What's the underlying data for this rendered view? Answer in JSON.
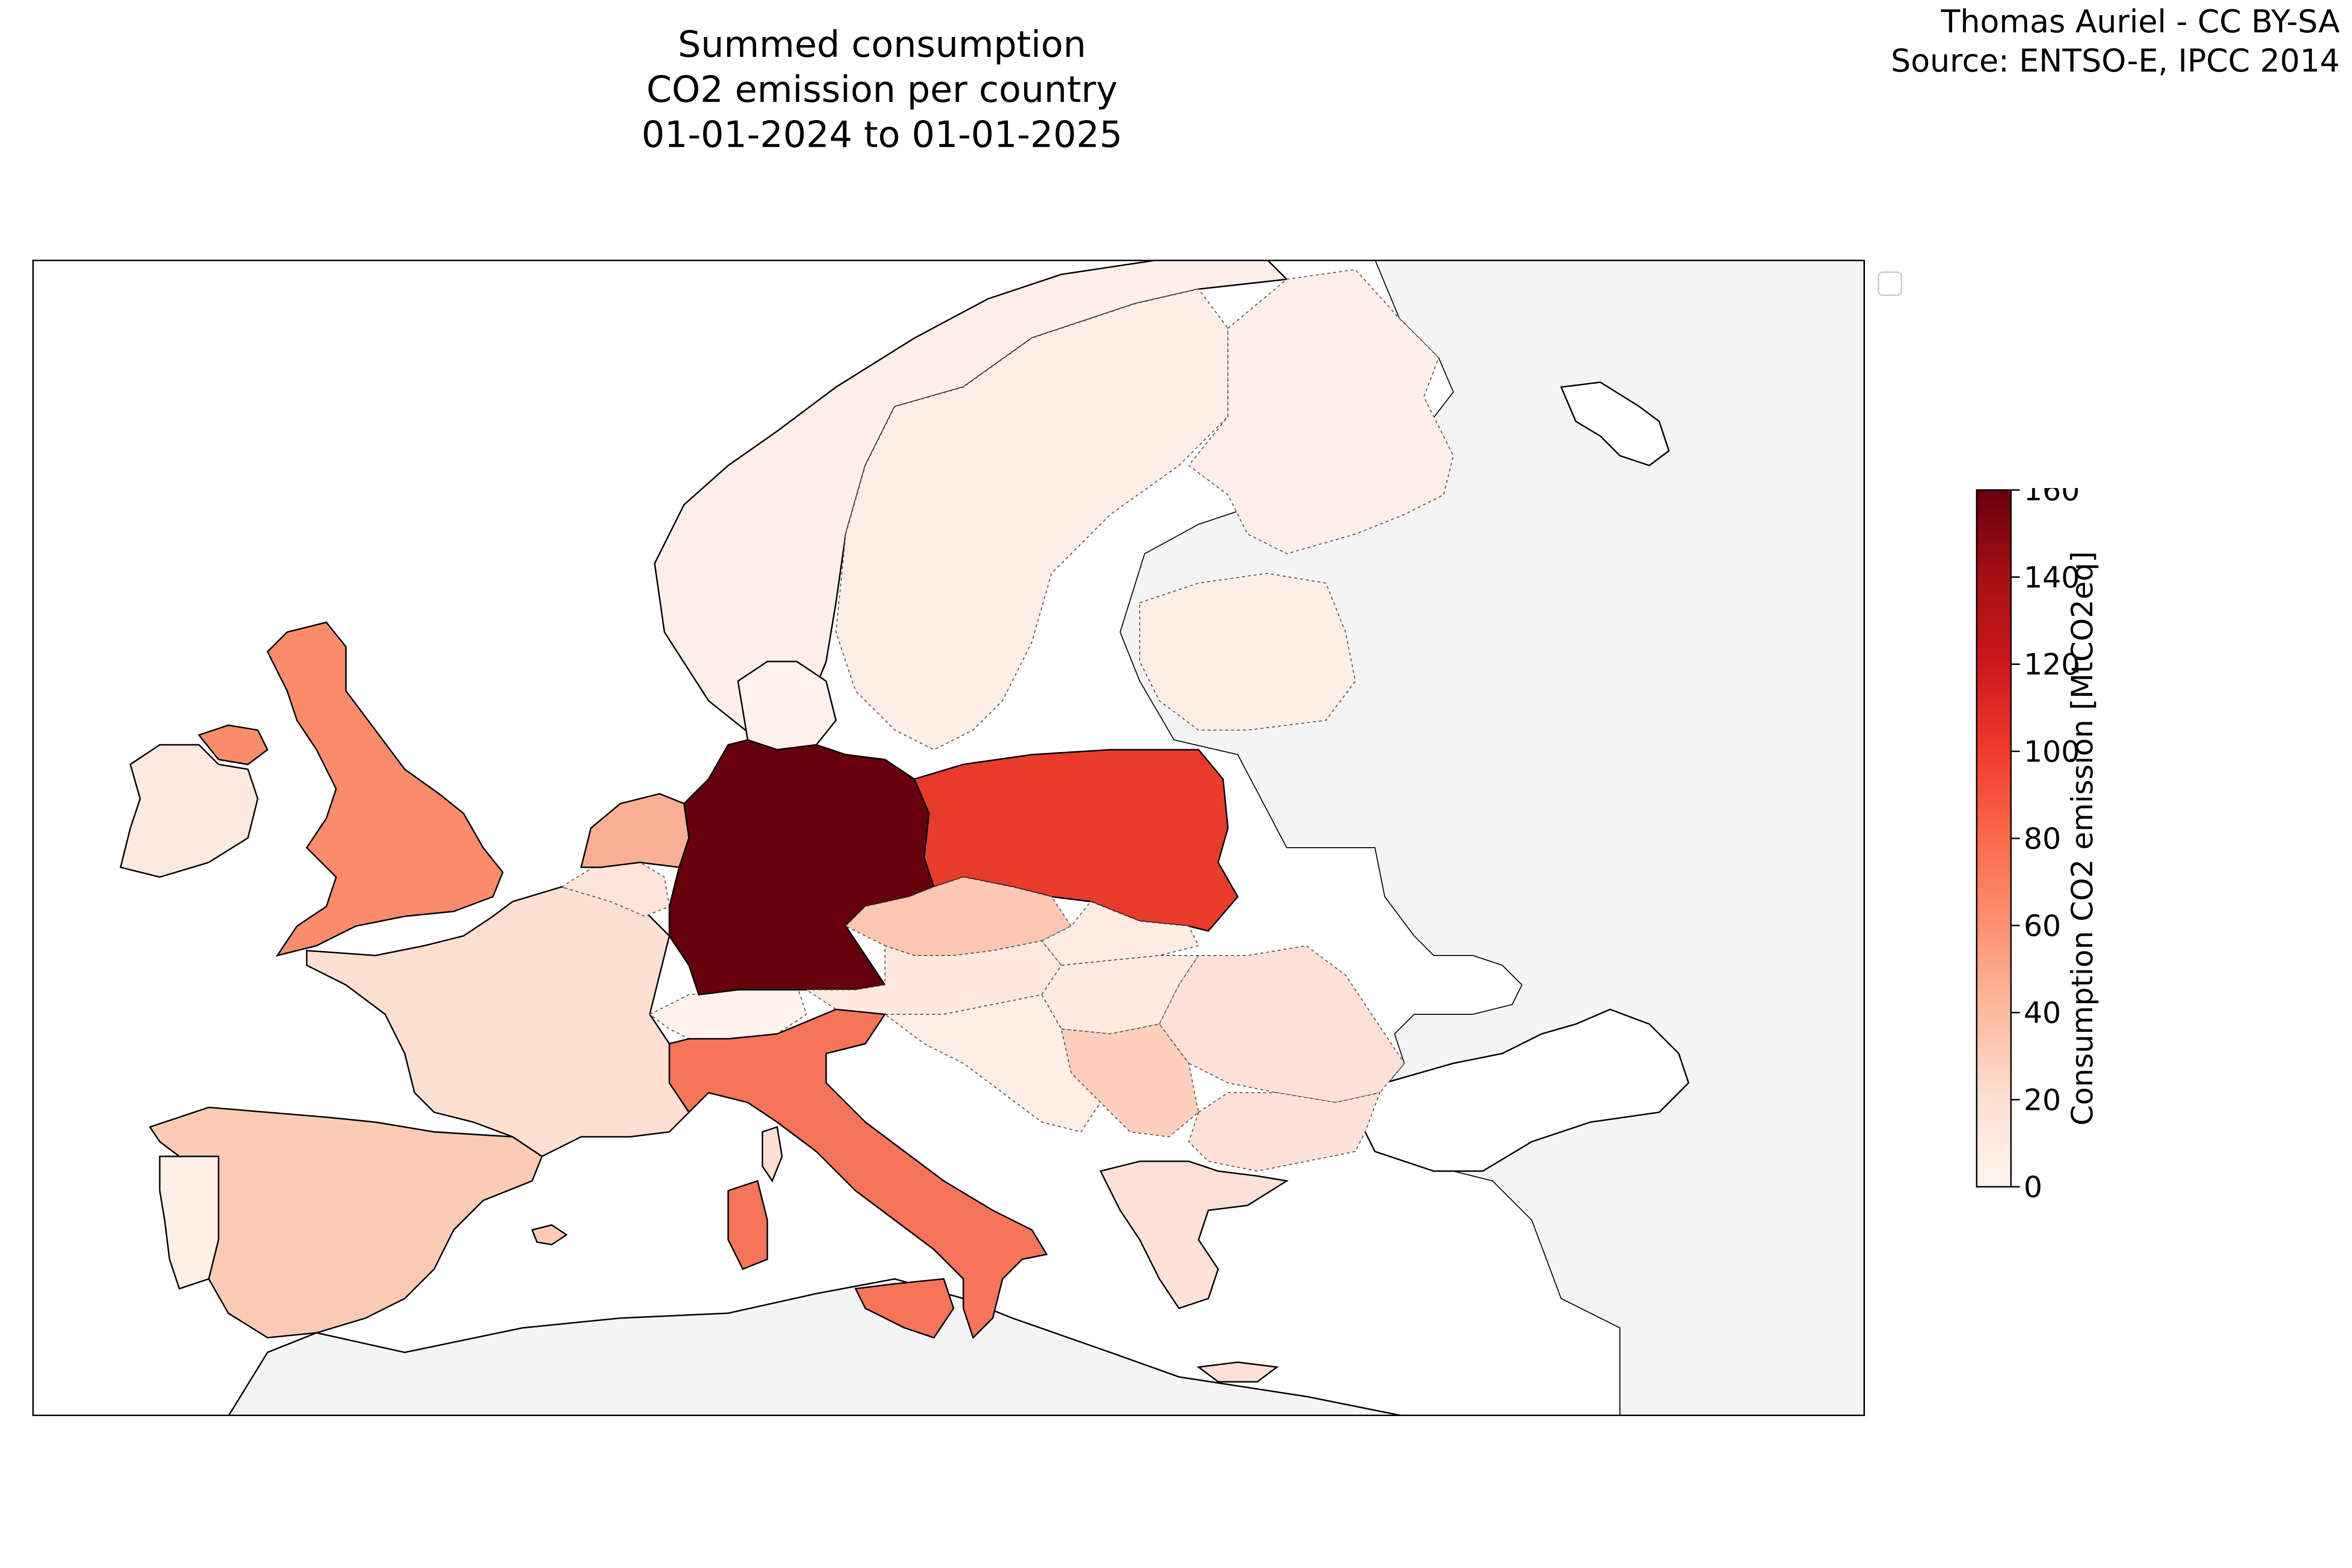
{
  "title_line1": "Summed consumption CO2 emission per country",
  "title_line2": "01-01-2024 to 01-01-2025",
  "credit_line1": "Thomas Auriel - CC BY-SA",
  "credit_line2": "Source: ENTSO-E, IPCC 2014",
  "map": {
    "ocean_color": "#ffffff",
    "no_data_color": "#f4f4f4",
    "regions": [
      {
        "name": "Germany",
        "value": 160,
        "color": "#67000d"
      },
      {
        "name": "Poland",
        "value": 102,
        "color": "#e83b2c"
      },
      {
        "name": "Italy",
        "value": 72,
        "color": "#f6745a"
      },
      {
        "name": "United Kingdom",
        "value": 60,
        "color": "#fa8c6c"
      },
      {
        "name": "Netherlands",
        "value": 38,
        "color": "#fcaf95"
      },
      {
        "name": "Czechia",
        "value": 26,
        "color": "#fcc7b1"
      },
      {
        "name": "Spain",
        "value": 24,
        "color": "#fdcab5"
      },
      {
        "name": "Serbia",
        "value": 22,
        "color": "#fdd0bd"
      },
      {
        "name": "Ireland",
        "value": 8,
        "color": "#fee9df"
      },
      {
        "name": "France",
        "value": 14,
        "color": "#fee0d3"
      },
      {
        "name": "Romania",
        "value": 14,
        "color": "#fde1d6"
      },
      {
        "name": "Greece",
        "value": 14,
        "color": "#fde1d6"
      },
      {
        "name": "Bulgaria",
        "value": 13,
        "color": "#fee2d7"
      },
      {
        "name": "Belgium",
        "value": 12,
        "color": "#fee4d9"
      },
      {
        "name": "Austria",
        "value": 10,
        "color": "#fee7dd"
      },
      {
        "name": "Hungary",
        "value": 9,
        "color": "#feeae1"
      },
      {
        "name": "Slovakia",
        "value": 8,
        "color": "#feebe3"
      },
      {
        "name": "Sweden",
        "value": 6,
        "color": "#feeee6"
      },
      {
        "name": "Norway",
        "value": 5,
        "color": "#ffefe8"
      },
      {
        "name": "Finland",
        "value": 5,
        "color": "#ffefe8"
      },
      {
        "name": "Portugal",
        "value": 5,
        "color": "#feefe7"
      },
      {
        "name": "Denmark",
        "value": 4,
        "color": "#fff1eb"
      },
      {
        "name": "Switzerland",
        "value": 4,
        "color": "#fff1eb"
      },
      {
        "name": "Baltic states",
        "value": 6,
        "color": "#feeee6"
      },
      {
        "name": "Croatia / Slovenia / Bosnia",
        "value": 7,
        "color": "#feede5"
      }
    ]
  },
  "colorbar": {
    "label": "Consumption CO2 emission [MtCO2eq]",
    "min": 0,
    "max": 160,
    "ticks": [
      "0",
      "20",
      "40",
      "60",
      "80",
      "100",
      "120",
      "140",
      "160"
    ],
    "colormap": "Reds",
    "stops": [
      "#fff5f0",
      "#fee0d2",
      "#fcbba1",
      "#fc9272",
      "#fb6a4a",
      "#ef3b2c",
      "#cb181d",
      "#a50f15",
      "#67000d"
    ]
  }
}
